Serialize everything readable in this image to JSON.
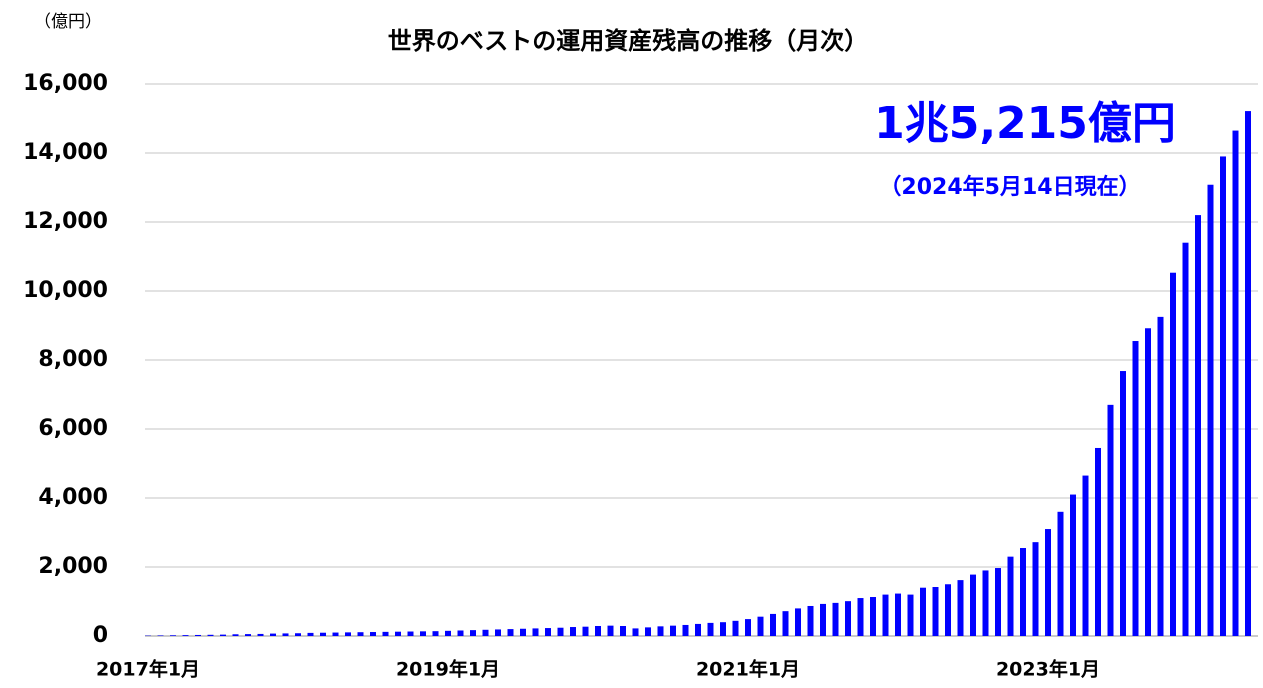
{
  "chart_data": {
    "type": "bar",
    "title": "世界のベストの運用資産残高の推移（月次）",
    "unit_label": "（億円）",
    "annotations": [
      "1兆5,215億円",
      "（2024年5月14日現在）"
    ],
    "color": "#0000ff",
    "grid": true,
    "categories": [
      "2017年1月",
      null,
      null,
      null,
      null,
      null,
      null,
      null,
      null,
      null,
      null,
      null,
      null,
      null,
      null,
      null,
      null,
      null,
      null,
      null,
      null,
      null,
      null,
      null,
      "2019年1月",
      null,
      null,
      null,
      null,
      null,
      null,
      null,
      null,
      null,
      null,
      null,
      null,
      null,
      null,
      null,
      null,
      null,
      null,
      null,
      null,
      null,
      null,
      null,
      "2021年1月",
      null,
      null,
      null,
      null,
      null,
      null,
      null,
      null,
      null,
      null,
      null,
      null,
      null,
      null,
      null,
      null,
      null,
      null,
      null,
      null,
      null,
      null,
      null,
      "2023年1月",
      null,
      null,
      null,
      null,
      null,
      null,
      null,
      null,
      null,
      null,
      null,
      null,
      null,
      null,
      null,
      null
    ],
    "values": [
      10,
      15,
      20,
      25,
      30,
      35,
      40,
      50,
      55,
      60,
      70,
      75,
      80,
      90,
      95,
      100,
      105,
      110,
      115,
      120,
      125,
      130,
      135,
      140,
      150,
      160,
      170,
      180,
      190,
      200,
      210,
      220,
      230,
      240,
      260,
      270,
      290,
      300,
      290,
      220,
      250,
      280,
      300,
      320,
      350,
      380,
      400,
      440,
      490,
      560,
      640,
      720,
      800,
      870,
      930,
      960,
      1010,
      1100,
      1130,
      1200,
      1230,
      1200,
      1400,
      1420,
      1500,
      1620,
      1780,
      1900,
      1970,
      2300,
      2550,
      2720,
      3100,
      3600,
      4100,
      4650,
      5450,
      6700,
      7680,
      8550,
      8920,
      9250,
      10530,
      11400,
      12200,
      13080,
      13900,
      14650,
      15215
    ],
    "ylim": [
      0,
      16000
    ],
    "yticks": [
      0,
      {
        "value": 2000,
        "label": "2,000"
      },
      {
        "value": 4000,
        "label": "4,000"
      },
      {
        "value": 6000,
        "label": "6,000"
      },
      {
        "value": 8000,
        "label": "8,000"
      },
      {
        "value": 10000,
        "label": "10,000"
      },
      {
        "value": 12000,
        "label": "12,000"
      },
      {
        "value": 14000,
        "label": "14,000"
      },
      {
        "value": 16000,
        "label": "16,000"
      }
    ]
  }
}
